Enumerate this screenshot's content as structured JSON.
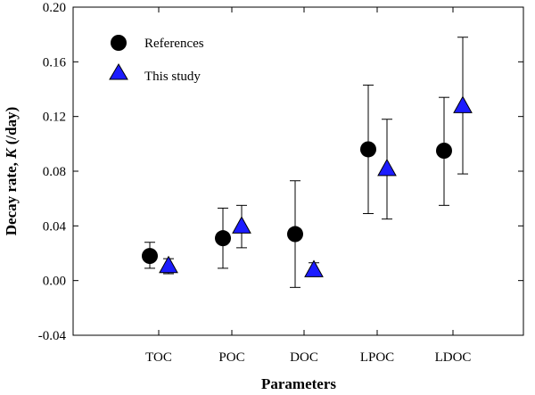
{
  "chart_data": {
    "type": "scatter",
    "xlabel": "Parameters",
    "ylabel_prefix": "Decay rate, ",
    "ylabel_var": "K",
    "ylabel_suffix": " (/day)",
    "categories": [
      "TOC",
      "POC",
      "DOC",
      "LPOC",
      "LDOC"
    ],
    "ylim": [
      -0.04,
      0.2
    ],
    "yticks": [
      -0.04,
      0.0,
      0.04,
      0.08,
      0.12,
      0.16,
      0.2
    ],
    "ytick_labels": [
      "-0.04",
      "0.00",
      "0.04",
      "0.08",
      "0.12",
      "0.16",
      "0.20"
    ],
    "grid": false,
    "legend_position": "top-left",
    "series": [
      {
        "name": "References",
        "marker": "circle",
        "color": "#000000",
        "values": [
          0.018,
          0.031,
          0.034,
          0.096,
          0.095
        ],
        "err_low": [
          0.009,
          0.009,
          -0.005,
          0.049,
          0.055
        ],
        "err_high": [
          0.028,
          0.053,
          0.073,
          0.143,
          0.134
        ]
      },
      {
        "name": "This study",
        "marker": "triangle",
        "color": "#1c1cff",
        "values": [
          0.011,
          0.04,
          0.008,
          0.082,
          0.128
        ],
        "err_low": [
          0.005,
          0.024,
          0.003,
          0.045,
          0.078
        ],
        "err_high": [
          0.016,
          0.055,
          0.013,
          0.118,
          0.178
        ]
      }
    ]
  }
}
